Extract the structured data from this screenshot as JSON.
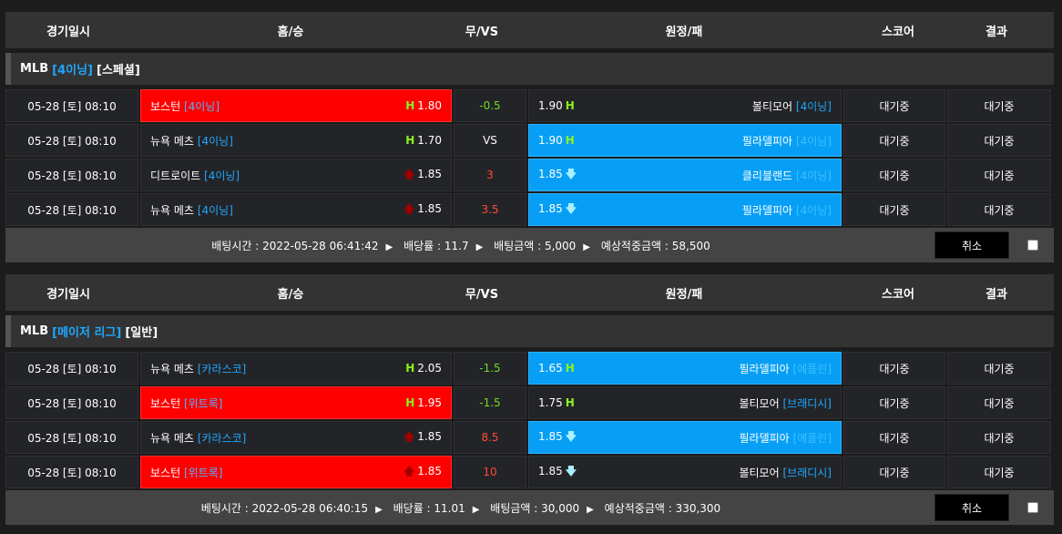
{
  "headers": {
    "date": "경기일시",
    "home": "홈/승",
    "vs": "무/VS",
    "away": "원정/패",
    "score": "스코어",
    "result": "결과"
  },
  "colors": {
    "home_selected": "#ff0000",
    "away_selected": "#079ff5",
    "tag": "#1ea7ff",
    "H": "#8df21c",
    "up": "#a00000",
    "down": "#a8f0ff",
    "handicap_neg": "#6ddc20",
    "handicap_pos": "#ff4a3a"
  },
  "sections": [
    {
      "category": {
        "league": "MLB",
        "tag": "[4이닝]",
        "type": "[스페셜]"
      },
      "rows": [
        {
          "date": "05-28 [토] 08:10",
          "home": "보스턴",
          "home_tag": "[4이닝]",
          "home_ind": "H",
          "home_odds": "1.80",
          "vs": "-0.5",
          "vs_color": "neg",
          "away_odds": "1.90",
          "away_ind": "H",
          "away": "볼티모어",
          "away_tag": "[4이닝]",
          "selected": "home",
          "score": "대기중",
          "result": "대기중"
        },
        {
          "date": "05-28 [토] 08:10",
          "home": "뉴욕 메츠",
          "home_tag": "[4이닝]",
          "home_ind": "H",
          "home_odds": "1.70",
          "vs": "VS",
          "vs_color": "white",
          "away_odds": "1.90",
          "away_ind": "H",
          "away": "필라델피아",
          "away_tag": "[4이닝]",
          "selected": "away",
          "score": "대기중",
          "result": "대기중"
        },
        {
          "date": "05-28 [토] 08:10",
          "home": "디트로이트",
          "home_tag": "[4이닝]",
          "home_ind": "up",
          "home_odds": "1.85",
          "vs": "3",
          "vs_color": "pos",
          "away_odds": "1.85",
          "away_ind": "down",
          "away": "클리블랜드",
          "away_tag": "[4이닝]",
          "selected": "away",
          "score": "대기중",
          "result": "대기중"
        },
        {
          "date": "05-28 [토] 08:10",
          "home": "뉴욕 메츠",
          "home_tag": "[4이닝]",
          "home_ind": "up",
          "home_odds": "1.85",
          "vs": "3.5",
          "vs_color": "pos",
          "away_odds": "1.85",
          "away_ind": "down",
          "away": "필라델피아",
          "away_tag": "[4이닝]",
          "selected": "away",
          "score": "대기중",
          "result": "대기중"
        }
      ],
      "footer": {
        "bet_time": "배팅시간 : 2022-05-28 06:41:42",
        "odds": "배당률 : 11.7",
        "amount": "배팅금액 : 5,000",
        "expected": "예상적중금액 : 58,500",
        "cancel": "취소"
      }
    },
    {
      "category": {
        "league": "MLB",
        "tag": "[메이저 리그]",
        "type": "[일반]"
      },
      "rows": [
        {
          "date": "05-28 [토] 08:10",
          "home": "뉴욕 메츠",
          "home_tag": "[카라스코]",
          "home_ind": "H",
          "home_odds": "2.05",
          "vs": "-1.5",
          "vs_color": "neg",
          "away_odds": "1.65",
          "away_ind": "H",
          "away": "필라델피아",
          "away_tag": "[에플린]",
          "selected": "away",
          "score": "대기중",
          "result": "대기중"
        },
        {
          "date": "05-28 [토] 08:10",
          "home": "보스턴",
          "home_tag": "[위트록]",
          "home_ind": "H",
          "home_odds": "1.95",
          "vs": "-1.5",
          "vs_color": "neg",
          "away_odds": "1.75",
          "away_ind": "H",
          "away": "볼티모어",
          "away_tag": "[브래디시]",
          "selected": "home",
          "score": "대기중",
          "result": "대기중"
        },
        {
          "date": "05-28 [토] 08:10",
          "home": "뉴욕 메츠",
          "home_tag": "[카라스코]",
          "home_ind": "up",
          "home_odds": "1.85",
          "vs": "8.5",
          "vs_color": "pos",
          "away_odds": "1.85",
          "away_ind": "down",
          "away": "필라델피아",
          "away_tag": "[에플린]",
          "selected": "away",
          "score": "대기중",
          "result": "대기중"
        },
        {
          "date": "05-28 [토] 08:10",
          "home": "보스턴",
          "home_tag": "[위트록]",
          "home_ind": "up",
          "home_odds": "1.85",
          "vs": "10",
          "vs_color": "pos",
          "away_odds": "1.85",
          "away_ind": "down",
          "away": "볼티모어",
          "away_tag": "[브래디시]",
          "selected": "home",
          "score": "대기중",
          "result": "대기중"
        }
      ],
      "footer": {
        "bet_time": "베팅시간 : 2022-05-28 06:40:15",
        "odds": "배당률 : 11.01",
        "amount": "배팅금액 : 30,000",
        "expected": "예상적중금액 : 330,300",
        "cancel": "취소"
      }
    }
  ]
}
